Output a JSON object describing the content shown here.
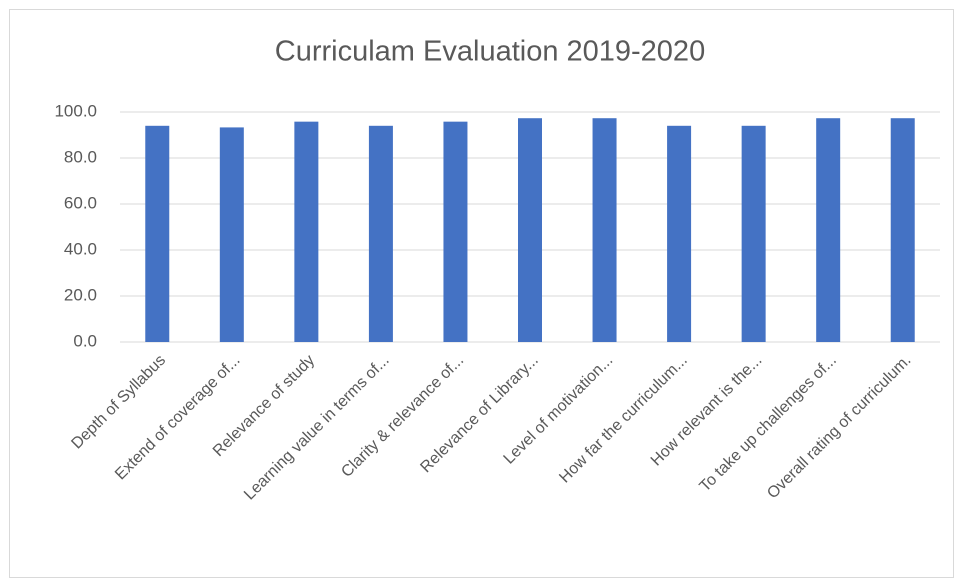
{
  "chart_data": {
    "type": "bar",
    "title": "Curriculam Evaluation 2019-2020",
    "categories": [
      "Depth of Syllabus",
      "Extend of coverage of...",
      "Relevance of study",
      "Learning value in terms of...",
      "Clarity & relevance of...",
      "Relevance of Library...",
      "Level of motivation...",
      "How far the curriculum...",
      "How relevant is the...",
      "To take up challenges of...",
      "Overall rating of curriculum."
    ],
    "values": [
      94,
      93.3,
      95.8,
      94,
      95.8,
      97.3,
      97.3,
      94,
      94,
      97.3,
      97.3
    ],
    "color": "#4472c4",
    "ylim": [
      0,
      100
    ],
    "yticks": [
      {
        "value": 0,
        "label": "0.0"
      },
      {
        "value": 20,
        "label": "20.0"
      },
      {
        "value": 40,
        "label": "40.0"
      },
      {
        "value": 60,
        "label": "60.0"
      },
      {
        "value": 80,
        "label": "80.0"
      },
      {
        "value": 100,
        "label": "100.0"
      }
    ],
    "grid": true
  }
}
